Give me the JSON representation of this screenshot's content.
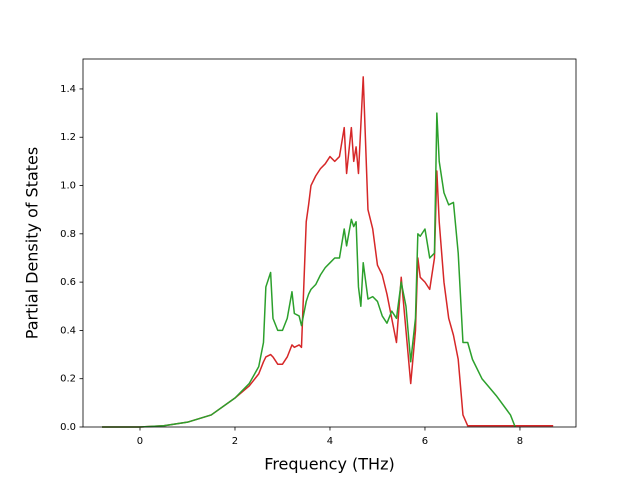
{
  "chart_data": {
    "type": "line",
    "x_label": "Frequency (THz)",
    "y_label": "Partial Density of States",
    "x": [
      -0.8,
      0,
      0.5,
      1,
      1.5,
      2,
      2.3,
      2.5,
      2.6,
      2.65,
      2.75,
      2.8,
      2.9,
      3,
      3.1,
      3.2,
      3.25,
      3.35,
      3.4,
      3.5,
      3.55,
      3.6,
      3.7,
      3.8,
      3.9,
      4,
      4.1,
      4.2,
      4.3,
      4.35,
      4.45,
      4.5,
      4.55,
      4.6,
      4.65,
      4.7,
      4.8,
      4.9,
      5,
      5.1,
      5.2,
      5.3,
      5.4,
      5.5,
      5.6,
      5.7,
      5.8,
      5.85,
      5.9,
      6,
      6.1,
      6.2,
      6.25,
      6.3,
      6.4,
      6.5,
      6.6,
      6.7,
      6.8,
      6.9,
      7,
      7.2,
      7.5,
      7.8,
      7.9,
      8.7
    ],
    "series": [
      {
        "color": "#d62728",
        "values": [
          0,
          0,
          0.005,
          0.02,
          0.05,
          0.12,
          0.17,
          0.22,
          0.27,
          0.29,
          0.3,
          0.29,
          0.26,
          0.26,
          0.29,
          0.34,
          0.33,
          0.34,
          0.33,
          0.85,
          0.92,
          1.0,
          1.04,
          1.07,
          1.09,
          1.12,
          1.1,
          1.12,
          1.24,
          1.05,
          1.24,
          1.1,
          1.16,
          1.05,
          1.25,
          1.45,
          0.9,
          0.82,
          0.67,
          0.63,
          0.55,
          0.45,
          0.35,
          0.62,
          0.4,
          0.18,
          0.4,
          0.7,
          0.62,
          0.6,
          0.57,
          0.7,
          1.06,
          0.85,
          0.6,
          0.45,
          0.38,
          0.28,
          0.05,
          0.005,
          0.005,
          0.005,
          0.005,
          0.005,
          0.005,
          0.005
        ]
      },
      {
        "color": "#2ca02c",
        "values": [
          0,
          0,
          0.005,
          0.02,
          0.05,
          0.12,
          0.18,
          0.25,
          0.35,
          0.58,
          0.64,
          0.45,
          0.4,
          0.4,
          0.45,
          0.56,
          0.47,
          0.46,
          0.42,
          0.52,
          0.55,
          0.57,
          0.59,
          0.63,
          0.66,
          0.68,
          0.7,
          0.7,
          0.82,
          0.75,
          0.86,
          0.83,
          0.85,
          0.58,
          0.5,
          0.68,
          0.53,
          0.54,
          0.52,
          0.46,
          0.43,
          0.48,
          0.45,
          0.6,
          0.5,
          0.27,
          0.45,
          0.8,
          0.79,
          0.82,
          0.7,
          0.72,
          1.3,
          1.1,
          0.97,
          0.92,
          0.93,
          0.72,
          0.35,
          0.35,
          0.28,
          0.2,
          0.13,
          0.05,
          0.0,
          null
        ]
      }
    ],
    "xlim": [
      -1.2,
      9.18
    ],
    "ylim": [
      0,
      1.524
    ],
    "xticks": [
      0,
      2,
      4,
      6,
      8
    ],
    "yticks": [
      {
        "value": 0,
        "label": "0.0"
      },
      0.2,
      0.4,
      0.6,
      0.8,
      {
        "value": 1,
        "label": "1.0"
      },
      1.2,
      1.4
    ]
  }
}
